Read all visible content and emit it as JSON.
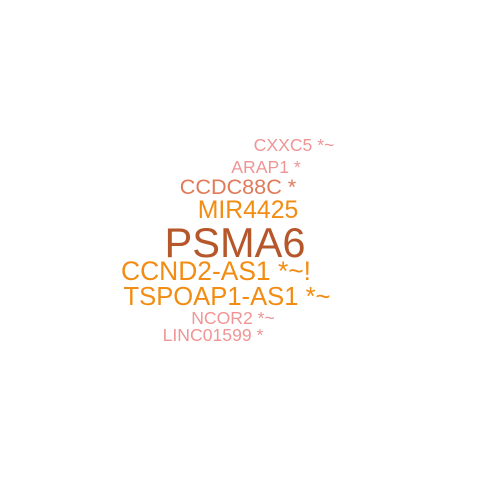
{
  "chart_data": {
    "type": "wordcloud",
    "palette": {
      "brown": "#b5562b",
      "orange": "#f28c12",
      "salmon": "#e07a58",
      "pink": "#ef9595"
    },
    "words": [
      {
        "label": "CXXC5 *~",
        "color": "#ef9595",
        "weight": 1.1
      },
      {
        "label": "ARAP1 *",
        "color": "#ef9595",
        "weight": 1.1
      },
      {
        "label": "CCDC88C *",
        "color": "#e07a58",
        "weight": 1.35
      },
      {
        "label": "MIR4425",
        "color": "#f28c12",
        "weight": 1.55
      },
      {
        "label": "PSMA6",
        "color": "#b5562b",
        "weight": 2.6
      },
      {
        "label": "CCND2-AS1 *~!",
        "color": "#f28c12",
        "weight": 1.65
      },
      {
        "label": "TSPOAP1-AS1 *~",
        "color": "#f28c12",
        "weight": 1.6
      },
      {
        "label": "NCOR2 *~",
        "color": "#ef9595",
        "weight": 1.1
      },
      {
        "label": "LINC01599 *",
        "color": "#ef9595",
        "weight": 1.1
      }
    ]
  }
}
